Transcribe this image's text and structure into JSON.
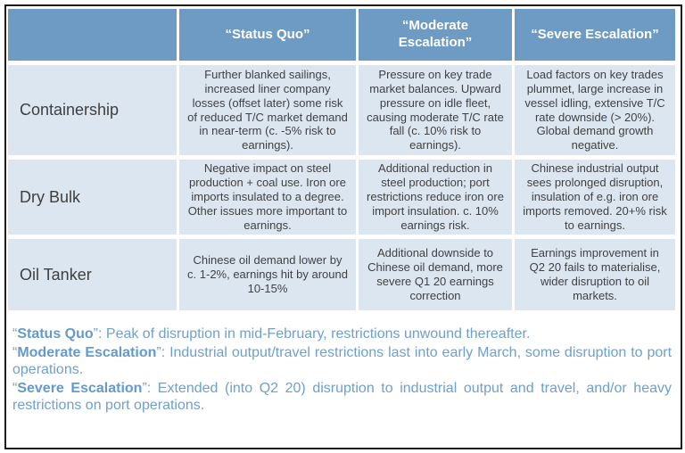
{
  "theme": {
    "header_bg": "#6E9BC3",
    "row_bg": "#DCE6F1",
    "body_text": "#414141",
    "footer_text": "#6FA0CB",
    "frame_border": "#1C1C1C"
  },
  "table": {
    "columns": {
      "row_header": "",
      "status_quo": "“Status Quo”",
      "moderate_escalation": "“Moderate Escalation”",
      "severe_escalation": "“Severe Escalation”"
    },
    "rows": [
      {
        "label": "Containership",
        "cells": [
          "Further blanked sailings, increased liner company losses (offset later) some risk of reduced T/C market demand in near-term (c. -5% risk to earnings).",
          "Pressure on key trade market balances. Upward pressure on idle fleet, causing moderate T/C rate fall (c. 10% risk to earnings).",
          "Load factors on key trades plummet, large increase in vessel idling, extensive T/C rate downside (> 20%). Global demand growth negative."
        ]
      },
      {
        "label": "Dry Bulk",
        "cells": [
          "Negative impact on steel production + coal use. Iron ore imports insulated to a degree. Other issues more important to earnings.",
          "Additional reduction in steel production; port restrictions reduce iron ore import insulation. c. 10% earnings risk.",
          "Chinese industrial output sees prolonged disruption, insulation of e.g. iron ore imports removed. 20+% risk to earnings."
        ]
      },
      {
        "label": "Oil Tanker",
        "cells": [
          "Chinese oil demand lower by c. 1-2%, earnings hit by around 10-15%",
          "Additional downside to Chinese oil demand, more severe Q1 20 earnings correction",
          "Earnings improvement in Q2 20 fails to materialise, wider disruption to oil markets."
        ]
      }
    ]
  },
  "footer": {
    "open_quote": "“",
    "close_quote": "”: ",
    "notes": [
      {
        "label": "Status Quo",
        "text": "Peak of disruption in mid-February, restrictions unwound thereafter."
      },
      {
        "label": "Moderate Escalation",
        "text": "Industrial output/travel restrictions last into early March, some disruption to port operations."
      },
      {
        "label": "Severe Escalation",
        "text": "Extended (into Q2 20) disruption to industrial output and travel, and/or heavy restrictions on port operations."
      }
    ]
  }
}
